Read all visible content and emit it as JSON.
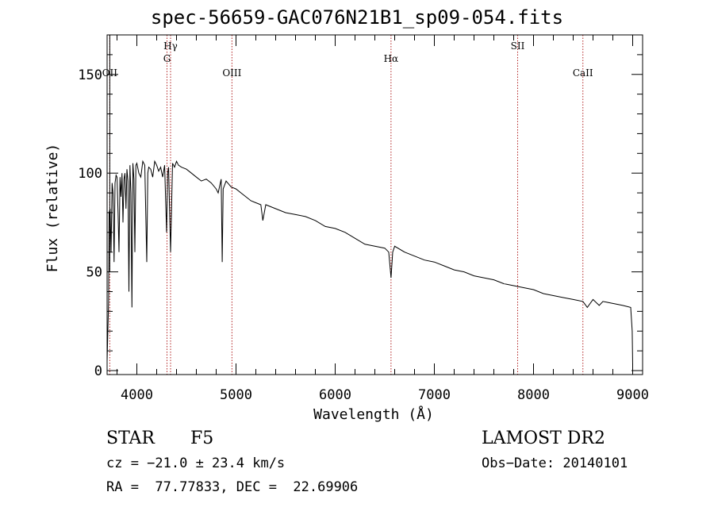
{
  "title": "spec-56659-GAC076N21B1_sp09-054.fits",
  "chart_data": {
    "type": "line",
    "title": "spec-56659-GAC076N21B1_sp09-054.fits",
    "xlabel": "Wavelength (Å)",
    "ylabel": "Flux (relative)",
    "xlim": [
      3700,
      9100
    ],
    "ylim": [
      -2,
      170
    ],
    "xticks": [
      4000,
      5000,
      6000,
      7000,
      8000,
      9000
    ],
    "yticks": [
      0,
      50,
      100,
      150
    ],
    "line_color": "#000000",
    "marker_color": "#b22222",
    "spectral_lines": [
      {
        "label": "OII",
        "x": 3727
      },
      {
        "label": "Hγ",
        "x": 4340
      },
      {
        "label": "G",
        "x": 4304
      },
      {
        "label": "OIII",
        "x": 4959
      },
      {
        "label": "Hα",
        "x": 6563
      },
      {
        "label": "SII",
        "x": 7840
      },
      {
        "label": "CaII",
        "x": 8498
      }
    ],
    "series": [
      {
        "x": [
          3700,
          3715,
          3720,
          3730,
          3740,
          3750,
          3760,
          3770,
          3780,
          3790,
          3800,
          3810,
          3820,
          3830,
          3840,
          3850,
          3860,
          3870,
          3880,
          3890,
          3900,
          3910,
          3920,
          3930,
          3940,
          3950,
          3960,
          3970,
          3980,
          3990,
          4000,
          4020,
          4040,
          4060,
          4080,
          4100,
          4110,
          4120,
          4140,
          4160,
          4180,
          4200,
          4220,
          4240,
          4260,
          4280,
          4300,
          4310,
          4320,
          4340,
          4360,
          4380,
          4400,
          4420,
          4450,
          4500,
          4550,
          4600,
          4650,
          4700,
          4750,
          4800,
          4820,
          4850,
          4861,
          4870,
          4900,
          4950,
          5000,
          5050,
          5100,
          5150,
          5200,
          5250,
          5270,
          5300,
          5400,
          5500,
          5600,
          5700,
          5800,
          5900,
          6000,
          6100,
          6200,
          6300,
          6400,
          6500,
          6540,
          6563,
          6580,
          6600,
          6700,
          6800,
          6900,
          7000,
          7100,
          7200,
          7300,
          7400,
          7500,
          7600,
          7700,
          7800,
          7900,
          8000,
          8100,
          8200,
          8300,
          8400,
          8498,
          8542,
          8600,
          8662,
          8700,
          8800,
          8900,
          8980,
          8995,
          9000
        ],
        "y": [
          5,
          35,
          80,
          82,
          60,
          95,
          90,
          55,
          95,
          99,
          98,
          80,
          60,
          98,
          88,
          100,
          75,
          97,
          100,
          82,
          102,
          96,
          40,
          104,
          90,
          32,
          105,
          97,
          60,
          104,
          105,
          100,
          98,
          106,
          104,
          55,
          100,
          103,
          102,
          98,
          106,
          104,
          101,
          103,
          98,
          104,
          70,
          100,
          103,
          60,
          105,
          103,
          106,
          104,
          103,
          102,
          100,
          98,
          96,
          97,
          95,
          92,
          90,
          97,
          55,
          92,
          96,
          93,
          92,
          90,
          88,
          86,
          85,
          84,
          76,
          84,
          82,
          80,
          79,
          78,
          76,
          73,
          72,
          70,
          67,
          64,
          63,
          62,
          60,
          47,
          60,
          63,
          60,
          58,
          56,
          55,
          53,
          51,
          50,
          48,
          47,
          46,
          44,
          43,
          42,
          41,
          39,
          38,
          37,
          36,
          35,
          32,
          36,
          33,
          35,
          34,
          33,
          32,
          20,
          3
        ]
      }
    ]
  },
  "info": {
    "object_class": "STAR",
    "subclass": "F5",
    "survey": "LAMOST DR2",
    "redshift": "cz = −21.0 ± 23.4 km/s",
    "obs_date": "Obs−Date: 20140101",
    "coords": "RA =  77.77833, DEC =  22.69906"
  }
}
